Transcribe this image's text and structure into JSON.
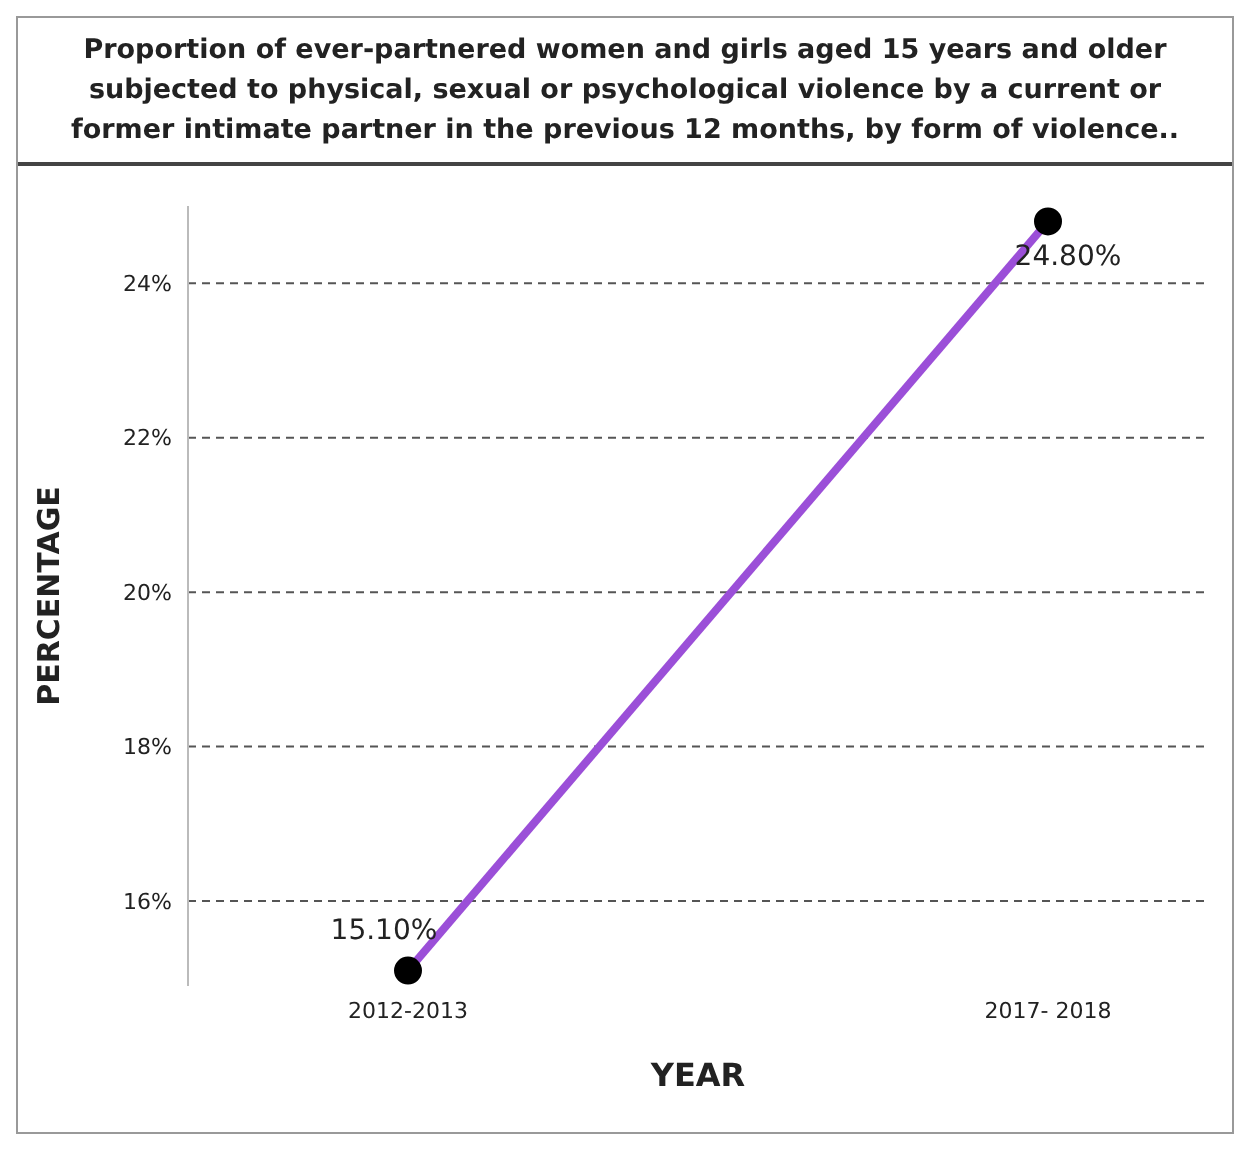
{
  "chart_data": {
    "type": "line",
    "title": "Proportion of ever-partnered women and girls aged 15 years and older subjected to physical, sexual or psychological violence by a current or former intimate partner in the previous 12 months, by form of violence..",
    "xlabel": "YEAR",
    "ylabel": "PERCENTAGE",
    "categories": [
      "2012-2013",
      "2017- 2018"
    ],
    "series": [
      {
        "color": "#9b4fd8",
        "values": [
          15.1,
          24.8
        ],
        "value_labels": [
          "15.10%",
          "24.80%"
        ]
      }
    ],
    "ylim": [
      14.9,
      25
    ],
    "yticks": [
      {
        "value": 16,
        "label": "16%"
      },
      {
        "value": 18,
        "label": "18%"
      },
      {
        "value": 20,
        "label": "20%"
      },
      {
        "value": 22,
        "label": "22%"
      },
      {
        "value": 24,
        "label": "24%"
      }
    ],
    "grid": "y",
    "marker": "circle",
    "line_style": "solid",
    "legend": false
  }
}
